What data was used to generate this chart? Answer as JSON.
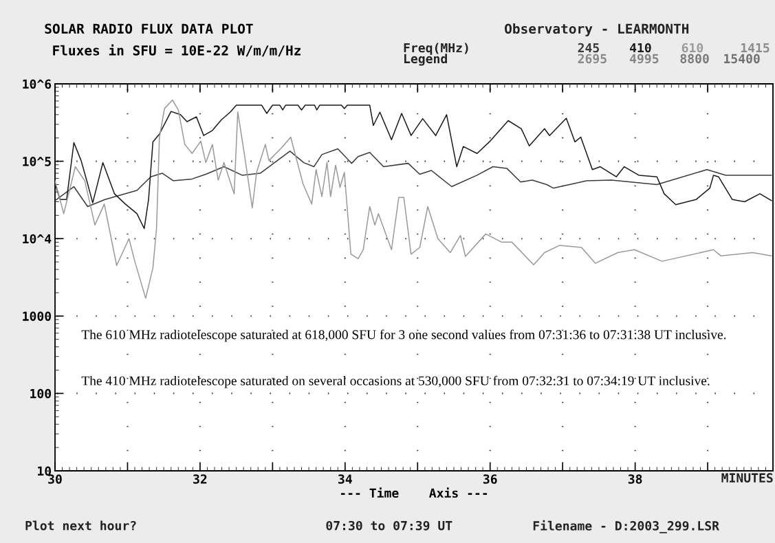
{
  "chart_data": {
    "type": "line",
    "title": "SOLAR RADIO FLUX DATA PLOT",
    "subtitle": "Fluxes in SFU = 10E-22 W/m/m/Hz",
    "xlabel": "--- Time    Axis ---",
    "log": "y",
    "grid": true,
    "legend": "top right",
    "line_style": "solid",
    "xlim": [
      30,
      39.9
    ],
    "ylim": [
      10,
      1000000
    ],
    "xticks": [
      30,
      {
        "value": 31,
        "label": null
      },
      32,
      {
        "value": 33,
        "label": null
      },
      34,
      {
        "value": 35,
        "label": null
      },
      36,
      {
        "value": 37,
        "label": null
      },
      38,
      {
        "value": 39,
        "label": null
      }
    ],
    "yticks": [
      10,
      100,
      1000,
      {
        "value": 10000,
        "label": "10^4"
      },
      {
        "value": 100000,
        "label": "10^5"
      },
      {
        "value": 1000000,
        "label": "10^6"
      }
    ],
    "series": [
      {
        "name": "245",
        "color": "#3a3a3a",
        "x": [
          30.0,
          30.26,
          30.45,
          30.69,
          31.13,
          31.32,
          31.48,
          31.63,
          31.89,
          32.08,
          32.33,
          32.58,
          32.83,
          33.24,
          33.43,
          33.57,
          33.68,
          33.9,
          34.09,
          34.18,
          34.34,
          34.53,
          34.87,
          35.03,
          35.19,
          35.47,
          35.82,
          36.04,
          36.23,
          36.42,
          36.58,
          36.78,
          36.87,
          37.33,
          37.67,
          38.3,
          38.99,
          39.25,
          39.88
        ],
        "values": [
          31000,
          47000,
          26000,
          32000,
          42000,
          63000,
          70000,
          56000,
          59000,
          68000,
          85000,
          66000,
          70000,
          135000,
          96000,
          85000,
          122000,
          145000,
          94000,
          115000,
          130000,
          85000,
          94000,
          68000,
          76000,
          47000,
          66000,
          85000,
          81000,
          54000,
          57000,
          50000,
          45000,
          56000,
          57000,
          50000,
          78000,
          66000,
          66000
        ]
      },
      {
        "name": "410",
        "color": "#1a1a1a",
        "x": [
          30.0,
          30.07,
          30.16,
          30.26,
          30.36,
          30.45,
          30.52,
          30.66,
          30.82,
          30.97,
          31.13,
          31.23,
          31.29,
          31.35,
          31.44,
          31.6,
          31.73,
          31.82,
          31.95,
          32.05,
          32.17,
          32.29,
          32.42,
          32.5,
          32.85,
          32.92,
          33.0,
          33.1,
          33.14,
          33.18,
          33.35,
          33.4,
          33.45,
          33.58,
          33.61,
          33.65,
          33.95,
          33.99,
          34.03,
          34.34,
          34.39,
          34.48,
          34.64,
          34.78,
          34.91,
          35.07,
          35.25,
          35.4,
          35.54,
          35.63,
          35.82,
          35.99,
          36.25,
          36.43,
          36.54,
          36.75,
          36.82,
          37.05,
          37.17,
          37.25,
          37.41,
          37.52,
          37.74,
          37.85,
          38.05,
          38.3,
          38.4,
          38.56,
          38.84,
          39.03,
          39.08,
          39.15,
          39.34,
          39.51,
          39.72,
          39.88
        ],
        "values": [
          51000,
          32000,
          32000,
          174000,
          102000,
          51000,
          29000,
          96000,
          38000,
          28000,
          21000,
          13500,
          32000,
          178000,
          225000,
          440000,
          400000,
          325000,
          375000,
          215000,
          250000,
          340000,
          435000,
          530000,
          530000,
          415000,
          530000,
          530000,
          460000,
          530000,
          530000,
          460000,
          530000,
          530000,
          460000,
          530000,
          530000,
          480000,
          530000,
          530000,
          290000,
          430000,
          190000,
          415000,
          215000,
          355000,
          215000,
          400000,
          85000,
          155000,
          126000,
          178000,
          335000,
          263000,
          158000,
          263000,
          215000,
          360000,
          178000,
          205000,
          78000,
          85000,
          63000,
          85000,
          66000,
          63000,
          38000,
          27500,
          32000,
          45000,
          66000,
          63000,
          32000,
          30000,
          38000,
          31000
        ]
      },
      {
        "name": "610",
        "color": "#9a9a9a",
        "x": [
          30.0,
          30.12,
          30.28,
          30.41,
          30.55,
          30.68,
          30.85,
          31.02,
          31.1,
          31.25,
          31.35,
          31.4,
          31.44,
          31.51,
          31.62,
          31.7,
          31.79,
          31.89,
          32.01,
          32.08,
          32.17,
          32.25,
          32.33,
          32.47,
          32.52,
          32.61,
          32.72,
          32.78,
          32.9,
          32.95,
          33.14,
          33.25,
          33.42,
          33.54,
          33.6,
          33.68,
          33.75,
          33.8,
          33.87,
          33.93,
          33.99,
          34.08,
          34.18,
          34.25,
          34.34,
          34.41,
          34.46,
          34.64,
          34.74,
          34.81,
          34.91,
          35.03,
          35.14,
          35.28,
          35.45,
          35.59,
          35.66,
          35.94,
          36.16,
          36.3,
          36.6,
          36.75,
          36.96,
          37.26,
          37.45,
          37.76,
          37.99,
          38.37,
          39.08,
          39.18,
          39.62,
          39.88
        ],
        "values": [
          56000,
          21000,
          85000,
          56000,
          15000,
          28000,
          4500,
          10000,
          5100,
          1700,
          4200,
          13500,
          205000,
          480000,
          618000,
          460000,
          165000,
          126000,
          182000,
          96000,
          165000,
          57000,
          96000,
          38000,
          435000,
          126000,
          25000,
          72000,
          165000,
          102000,
          155000,
          205000,
          51000,
          28000,
          78000,
          35000,
          96000,
          35000,
          89000,
          46000,
          72000,
          6300,
          5500,
          7200,
          26000,
          15000,
          21000,
          7200,
          34000,
          34000,
          6300,
          7700,
          26000,
          10000,
          6600,
          11000,
          5900,
          11500,
          9000,
          9000,
          4600,
          6600,
          8200,
          7700,
          4800,
          6600,
          7200,
          5100,
          7200,
          6000,
          6600,
          6000
        ]
      }
    ],
    "annotations": [
      "Observatory - LEARMONTH",
      "Freq(MHz)",
      "Legend",
      "1415",
      "2695",
      "4995",
      "8800",
      "15400",
      "MINUTES",
      "Plot next hour?",
      "07:30 to 07:39 UT",
      "Filename - D:2003_299.LSR",
      "The 610 MHz radiotelescope saturated at 618,000 SFU for 3 one second values from 07:31:36 to 07:31:38 UT inclusive.",
      "The 410 MHz radiotelescope saturated on several occasions at 530,000 SFU from 07:32:31 to 07:34:19 UT inclusive."
    ]
  }
}
